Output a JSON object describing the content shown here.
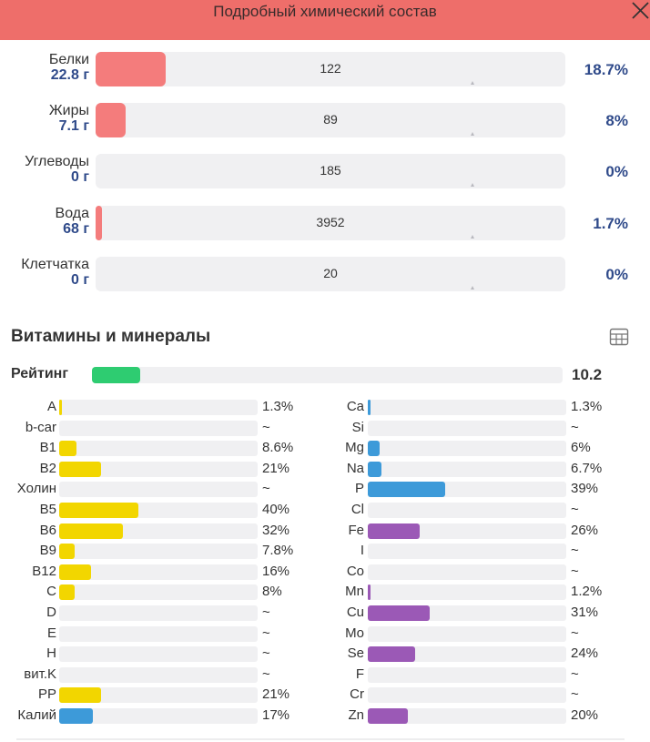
{
  "header": {
    "title": "Подробный химический состав"
  },
  "colors": {
    "header": "#ee6e6a",
    "macro_fill": "#f47c7c",
    "rating": "#2ecc71",
    "vitamin": "#f2d600",
    "mineral_blue": "#3d9ad9",
    "mineral_purple": "#9b59b6",
    "value_text": "#2f4a8a"
  },
  "macros": [
    {
      "name": "Белки",
      "amount": "22.8 г",
      "norm": "122",
      "pct": "18.7%",
      "fraction": 0.187
    },
    {
      "name": "Жиры",
      "amount": "7.1 г",
      "norm": "89",
      "pct": "8%",
      "fraction": 0.08
    },
    {
      "name": "Углеводы",
      "amount": "0 г",
      "norm": "185",
      "pct": "0%",
      "fraction": 0
    },
    {
      "name": "Вода",
      "amount": "68 г",
      "norm": "3952",
      "pct": "1.7%",
      "fraction": 0.017
    },
    {
      "name": "Клетчатка",
      "amount": "0 г",
      "norm": "20",
      "pct": "0%",
      "fraction": 0
    }
  ],
  "vitamins_section": {
    "title": "Витамины и минералы",
    "table_icon": "table-icon",
    "rating": {
      "label": "Рейтинг",
      "value": "10.2",
      "fraction": 0.102
    }
  },
  "left_items": [
    {
      "label": "A",
      "pct": "1.3%",
      "fraction": 0.013,
      "color": "vitamin"
    },
    {
      "label": "b-car",
      "pct": "~",
      "fraction": 0,
      "color": "vitamin"
    },
    {
      "label": "B1",
      "pct": "8.6%",
      "fraction": 0.086,
      "color": "vitamin"
    },
    {
      "label": "B2",
      "pct": "21%",
      "fraction": 0.21,
      "color": "vitamin"
    },
    {
      "label": "Холин",
      "pct": "~",
      "fraction": 0,
      "color": "vitamin"
    },
    {
      "label": "B5",
      "pct": "40%",
      "fraction": 0.4,
      "color": "vitamin"
    },
    {
      "label": "B6",
      "pct": "32%",
      "fraction": 0.32,
      "color": "vitamin"
    },
    {
      "label": "B9",
      "pct": "7.8%",
      "fraction": 0.078,
      "color": "vitamin"
    },
    {
      "label": "B12",
      "pct": "16%",
      "fraction": 0.16,
      "color": "vitamin"
    },
    {
      "label": "C",
      "pct": "8%",
      "fraction": 0.08,
      "color": "vitamin"
    },
    {
      "label": "D",
      "pct": "~",
      "fraction": 0,
      "color": "vitamin"
    },
    {
      "label": "E",
      "pct": "~",
      "fraction": 0,
      "color": "vitamin"
    },
    {
      "label": "H",
      "pct": "~",
      "fraction": 0,
      "color": "vitamin"
    },
    {
      "label": "вит.K",
      "pct": "~",
      "fraction": 0,
      "color": "vitamin"
    },
    {
      "label": "PP",
      "pct": "21%",
      "fraction": 0.21,
      "color": "vitamin"
    },
    {
      "label": "Калий",
      "pct": "17%",
      "fraction": 0.17,
      "color": "mineral_blue"
    }
  ],
  "right_items": [
    {
      "label": "Ca",
      "pct": "1.3%",
      "fraction": 0.013,
      "color": "mineral_blue"
    },
    {
      "label": "Si",
      "pct": "~",
      "fraction": 0,
      "color": "mineral_blue"
    },
    {
      "label": "Mg",
      "pct": "6%",
      "fraction": 0.06,
      "color": "mineral_blue"
    },
    {
      "label": "Na",
      "pct": "6.7%",
      "fraction": 0.067,
      "color": "mineral_blue"
    },
    {
      "label": "P",
      "pct": "39%",
      "fraction": 0.39,
      "color": "mineral_blue"
    },
    {
      "label": "Cl",
      "pct": "~",
      "fraction": 0,
      "color": "mineral_blue"
    },
    {
      "label": "Fe",
      "pct": "26%",
      "fraction": 0.26,
      "color": "mineral_purple"
    },
    {
      "label": "I",
      "pct": "~",
      "fraction": 0,
      "color": "mineral_purple"
    },
    {
      "label": "Co",
      "pct": "~",
      "fraction": 0,
      "color": "mineral_purple"
    },
    {
      "label": "Mn",
      "pct": "1.2%",
      "fraction": 0.012,
      "color": "mineral_purple"
    },
    {
      "label": "Cu",
      "pct": "31%",
      "fraction": 0.31,
      "color": "mineral_purple"
    },
    {
      "label": "Mo",
      "pct": "~",
      "fraction": 0,
      "color": "mineral_purple"
    },
    {
      "label": "Se",
      "pct": "24%",
      "fraction": 0.24,
      "color": "mineral_purple"
    },
    {
      "label": "F",
      "pct": "~",
      "fraction": 0,
      "color": "mineral_purple"
    },
    {
      "label": "Cr",
      "pct": "~",
      "fraction": 0,
      "color": "mineral_purple"
    },
    {
      "label": "Zn",
      "pct": "20%",
      "fraction": 0.2,
      "color": "mineral_purple"
    }
  ]
}
